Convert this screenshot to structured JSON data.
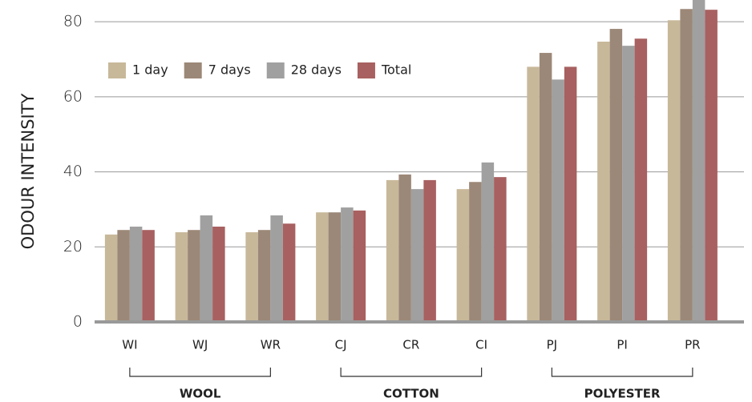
{
  "chart_data": {
    "type": "bar",
    "y_label": "ODOUR INTENSITY",
    "categories": [
      "WI",
      "WJ",
      "WR",
      "CJ",
      "CR",
      "CI",
      "PJ",
      "PI",
      "PR"
    ],
    "groups": [
      "WOOL",
      "COTTON",
      "POLYESTER"
    ],
    "series": [
      {
        "name": "1 day",
        "color": "#c8b89a",
        "values": [
          23.3,
          23.9,
          23.9,
          29.2,
          37.8,
          35.4,
          68,
          74.7,
          80.4
        ]
      },
      {
        "name": "7 days",
        "color": "#9c8878",
        "values": [
          24.5,
          24.5,
          24.5,
          29.2,
          39.3,
          37.3,
          71.7,
          78.1,
          83.4
        ]
      },
      {
        "name": "28 days",
        "color": "#a0a0a0",
        "values": [
          25.4,
          28.4,
          28.4,
          30.5,
          35.4,
          42.5,
          64.6,
          73.6,
          86
        ]
      },
      {
        "name": "Total",
        "color": "#a86060",
        "values": [
          24.5,
          25.4,
          26.2,
          29.7,
          37.8,
          38.6,
          68,
          75.5,
          83.2
        ]
      }
    ],
    "ylim": [
      0,
      85.8
    ],
    "yticks": [
      0,
      20,
      40,
      60,
      80
    ],
    "grid": true,
    "legend": "top-left"
  }
}
